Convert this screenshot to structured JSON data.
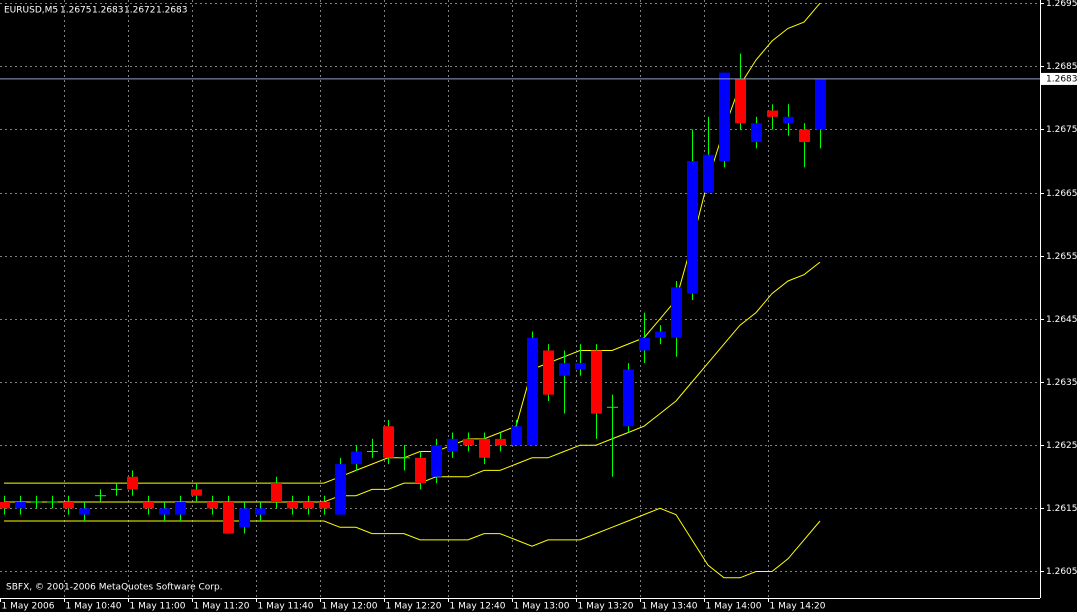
{
  "chart_data": {
    "type": "candlestick",
    "symbol": "EURUSD,M5",
    "header_values": [
      1.2675,
      1.2683,
      1.2672,
      1.2683
    ],
    "copyright": "SBFX, © 2001-2006 MetaQuotes Software Corp.",
    "current_price": 1.2683,
    "categories": [
      "1 May 2006",
      null,
      null,
      null,
      "1 May 10:40",
      null,
      null,
      null,
      "1 May 11:00",
      null,
      null,
      null,
      "1 May 11:20",
      null,
      null,
      null,
      "1 May 11:40",
      null,
      null,
      null,
      "1 May 12:00",
      null,
      null,
      null,
      "1 May 12:20",
      null,
      null,
      null,
      "1 May 12:40",
      null,
      null,
      null,
      "1 May 13:00",
      null,
      null,
      null,
      "1 May 13:20",
      null,
      null,
      null,
      "1 May 13:40",
      null,
      null,
      null,
      "1 May 14:00",
      null,
      null,
      null,
      "1 May 14:20",
      null,
      null,
      null
    ],
    "open": [
      1.2616,
      1.2615,
      1.2616,
      1.2616,
      1.2616,
      1.2614,
      1.2617,
      1.2618,
      1.262,
      1.2616,
      1.2614,
      1.2614,
      1.2618,
      1.2616,
      1.2616,
      1.2612,
      1.2614,
      1.2619,
      1.2616,
      1.2616,
      1.2616,
      1.2614,
      1.2622,
      1.2624,
      1.2628,
      1.2623,
      1.2623,
      1.262,
      1.2624,
      1.2626,
      1.2626,
      1.2626,
      1.2625,
      1.2625,
      1.264,
      1.2636,
      1.2637,
      1.264,
      1.2631,
      1.2628,
      1.264,
      1.2642,
      1.2642,
      1.2649,
      1.2665,
      1.267,
      1.2683,
      1.2673,
      1.2678,
      1.2676,
      1.2675,
      1.2675
    ],
    "high": [
      1.2617,
      1.2617,
      1.2617,
      1.2617,
      1.2617,
      1.2616,
      1.2618,
      1.2619,
      1.2621,
      1.2617,
      1.2616,
      1.2617,
      1.2619,
      1.2617,
      1.2617,
      1.2616,
      1.2616,
      1.262,
      1.2617,
      1.2617,
      1.2617,
      1.2623,
      1.2625,
      1.2626,
      1.2629,
      1.2625,
      1.2624,
      1.2626,
      1.2627,
      1.2627,
      1.2627,
      1.2627,
      1.2629,
      1.2643,
      1.2641,
      1.264,
      1.2641,
      1.2641,
      1.2633,
      1.2638,
      1.2646,
      1.2644,
      1.2651,
      1.2675,
      1.2677,
      1.2684,
      1.2687,
      1.2677,
      1.2679,
      1.2679,
      1.2676,
      1.2683
    ],
    "low": [
      1.2614,
      1.2614,
      1.2615,
      1.2615,
      1.2614,
      1.2613,
      1.2616,
      1.2617,
      1.2617,
      1.2614,
      1.2613,
      1.2613,
      1.2616,
      1.2614,
      1.2611,
      1.2611,
      1.2613,
      1.2615,
      1.2614,
      1.2614,
      1.2614,
      1.2614,
      1.2621,
      1.2623,
      1.2622,
      1.2621,
      1.2618,
      1.2619,
      1.2623,
      1.2624,
      1.2622,
      1.2624,
      1.2625,
      1.2625,
      1.2632,
      1.263,
      1.2636,
      1.2626,
      1.262,
      1.2627,
      1.2638,
      1.2641,
      1.2639,
      1.2648,
      1.2665,
      1.2669,
      1.2675,
      1.2672,
      1.2675,
      1.2674,
      1.2669,
      1.2672
    ],
    "close": [
      1.2615,
      1.2616,
      1.2616,
      1.2616,
      1.2615,
      1.2615,
      1.2617,
      1.2618,
      1.2618,
      1.2615,
      1.2615,
      1.2616,
      1.2617,
      1.2615,
      1.2611,
      1.2615,
      1.2615,
      1.2616,
      1.2615,
      1.2615,
      1.2615,
      1.2622,
      1.2624,
      1.2624,
      1.2623,
      1.2623,
      1.2619,
      1.2625,
      1.2626,
      1.2625,
      1.2623,
      1.2625,
      1.2628,
      1.2642,
      1.2633,
      1.2638,
      1.2638,
      1.263,
      1.2631,
      1.2637,
      1.2642,
      1.2643,
      1.265,
      1.267,
      1.2671,
      1.2684,
      1.2676,
      1.2676,
      1.2677,
      1.2677,
      1.2673,
      1.2683
    ],
    "up_color": "#0000ff",
    "down_color": "#ff0000",
    "wick_color": "#00ff00",
    "bands": [
      {
        "color": "#ffff00",
        "values": [
          1.2619,
          1.2619,
          1.2619,
          1.2619,
          1.2619,
          1.2619,
          1.2619,
          1.2619,
          1.2619,
          1.2619,
          1.2619,
          1.2619,
          1.2619,
          1.2619,
          1.2619,
          1.2619,
          1.2619,
          1.2619,
          1.2619,
          1.2619,
          1.2619,
          1.262,
          1.2621,
          1.2622,
          1.2623,
          1.2623,
          1.2624,
          1.2624,
          1.2625,
          1.2626,
          1.2626,
          1.2627,
          1.2628,
          1.2637,
          1.2638,
          1.2639,
          1.264,
          1.264,
          1.264,
          1.2641,
          1.2642,
          1.2645,
          1.2648,
          1.2657,
          1.2667,
          1.2675,
          1.2682,
          1.2686,
          1.2689,
          1.2691,
          1.2692,
          1.2695
        ]
      },
      {
        "color": "#ffff00",
        "values": [
          1.2616,
          1.2616,
          1.2616,
          1.2616,
          1.2616,
          1.2616,
          1.2616,
          1.2616,
          1.2616,
          1.2616,
          1.2616,
          1.2616,
          1.2616,
          1.2616,
          1.2616,
          1.2616,
          1.2616,
          1.2616,
          1.2616,
          1.2616,
          1.2616,
          1.2617,
          1.2617,
          1.2618,
          1.2618,
          1.2619,
          1.2619,
          1.262,
          1.262,
          1.262,
          1.2621,
          1.2621,
          1.2622,
          1.2623,
          1.2623,
          1.2624,
          1.2625,
          1.2625,
          1.2626,
          1.2627,
          1.2628,
          1.263,
          1.2632,
          1.2635,
          1.2638,
          1.2641,
          1.2644,
          1.2646,
          1.2649,
          1.2651,
          1.2652,
          1.2654
        ]
      },
      {
        "color": "#ffff00",
        "values": [
          1.2613,
          1.2613,
          1.2613,
          1.2613,
          1.2613,
          1.2613,
          1.2613,
          1.2613,
          1.2613,
          1.2613,
          1.2613,
          1.2613,
          1.2613,
          1.2613,
          1.2613,
          1.2613,
          1.2613,
          1.2613,
          1.2613,
          1.2613,
          1.2613,
          1.2612,
          1.2612,
          1.2611,
          1.2611,
          1.2611,
          1.261,
          1.261,
          1.261,
          1.261,
          1.2611,
          1.2611,
          1.261,
          1.2609,
          1.261,
          1.261,
          1.261,
          1.2611,
          1.2612,
          1.2613,
          1.2614,
          1.2615,
          1.2614,
          1.261,
          1.2606,
          1.2604,
          1.2604,
          1.2605,
          1.2605,
          1.2607,
          1.261,
          1.2613
        ]
      }
    ],
    "ylim": [
      1.26008,
      1.26955
    ],
    "yticks": [
      1.2605,
      1.2615,
      1.2625,
      1.2635,
      1.2645,
      1.2655,
      1.2665,
      1.2675,
      1.2685,
      1.2695
    ],
    "grid": true
  }
}
